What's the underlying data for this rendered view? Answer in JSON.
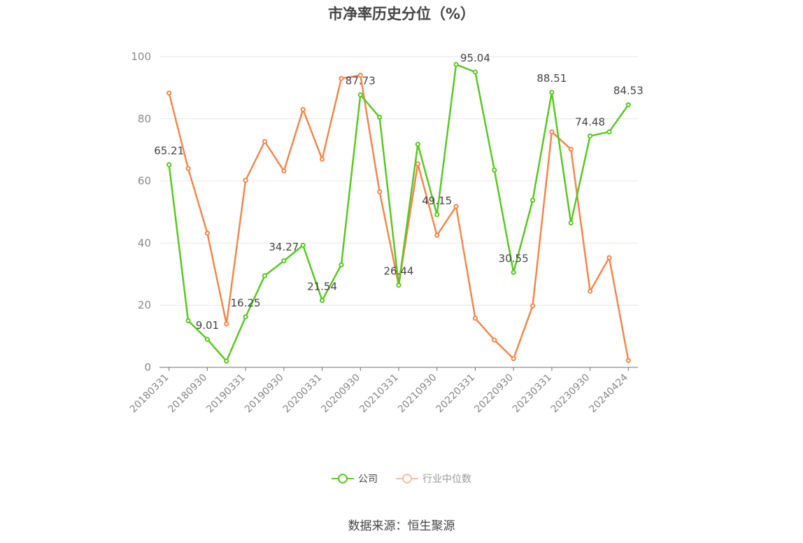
{
  "title": "市净率历史分位（%）",
  "source": "数据来源：恒生聚源",
  "colors": {
    "company": "#5ac724",
    "industry": "#f0884e",
    "grid": "#e4e6eb",
    "axis": "#6e7079",
    "tick": "#888888",
    "label": "#444444"
  },
  "chart_data": {
    "type": "line",
    "title": "市净率历史分位（%）",
    "ylim": [
      0,
      100
    ],
    "yticks": [
      0,
      20,
      40,
      60,
      80,
      100
    ],
    "grid": true,
    "legend_position": "bottom",
    "x": [
      "20180331",
      "20180630",
      "20180930",
      "20181231",
      "20190331",
      "20190630",
      "20190930",
      "20191231",
      "20200331",
      "20200630",
      "20200930",
      "20201231",
      "20210331",
      "20210630",
      "20210930",
      "20211231",
      "20220331",
      "20220630",
      "20220930",
      "20221231",
      "20230331",
      "20230630",
      "20230930",
      "20231231",
      "20240424"
    ],
    "xtick_labels": [
      "20180331",
      "20180930",
      "20190331",
      "20190930",
      "20200331",
      "20200930",
      "20210331",
      "20210930",
      "20220331",
      "20220930",
      "20230331",
      "20230930",
      "20240424"
    ],
    "series": [
      {
        "name": "公司",
        "values": [
          65.21,
          15.0,
          9.01,
          2.0,
          16.25,
          29.5,
          34.27,
          39.3,
          21.54,
          33.0,
          87.73,
          80.5,
          26.44,
          71.8,
          49.15,
          97.5,
          95.04,
          63.5,
          30.55,
          53.8,
          88.51,
          46.5,
          74.48,
          75.8,
          84.53
        ],
        "labeled": [
          {
            "i": 0,
            "text": "65.21"
          },
          {
            "i": 2,
            "text": "9.01"
          },
          {
            "i": 4,
            "text": "16.25"
          },
          {
            "i": 6,
            "text": "34.27"
          },
          {
            "i": 8,
            "text": "21.54"
          },
          {
            "i": 10,
            "text": "87.73"
          },
          {
            "i": 12,
            "text": "26.44"
          },
          {
            "i": 14,
            "text": "49.15"
          },
          {
            "i": 16,
            "text": "95.04"
          },
          {
            "i": 18,
            "text": "30.55"
          },
          {
            "i": 20,
            "text": "88.51"
          },
          {
            "i": 22,
            "text": "74.48"
          },
          {
            "i": 24,
            "text": "84.53"
          }
        ]
      },
      {
        "name": "行业中位数",
        "values": [
          88.3,
          64.0,
          43.2,
          14.0,
          60.2,
          72.7,
          63.2,
          83.0,
          67.0,
          93.0,
          94.0,
          56.5,
          26.5,
          65.5,
          42.5,
          51.8,
          15.8,
          8.8,
          2.8,
          19.8,
          75.8,
          70.2,
          24.5,
          35.3,
          2.2
        ]
      }
    ]
  },
  "legend": [
    {
      "name": "公司",
      "active": true
    },
    {
      "name": "行业中位数",
      "active": false
    }
  ]
}
